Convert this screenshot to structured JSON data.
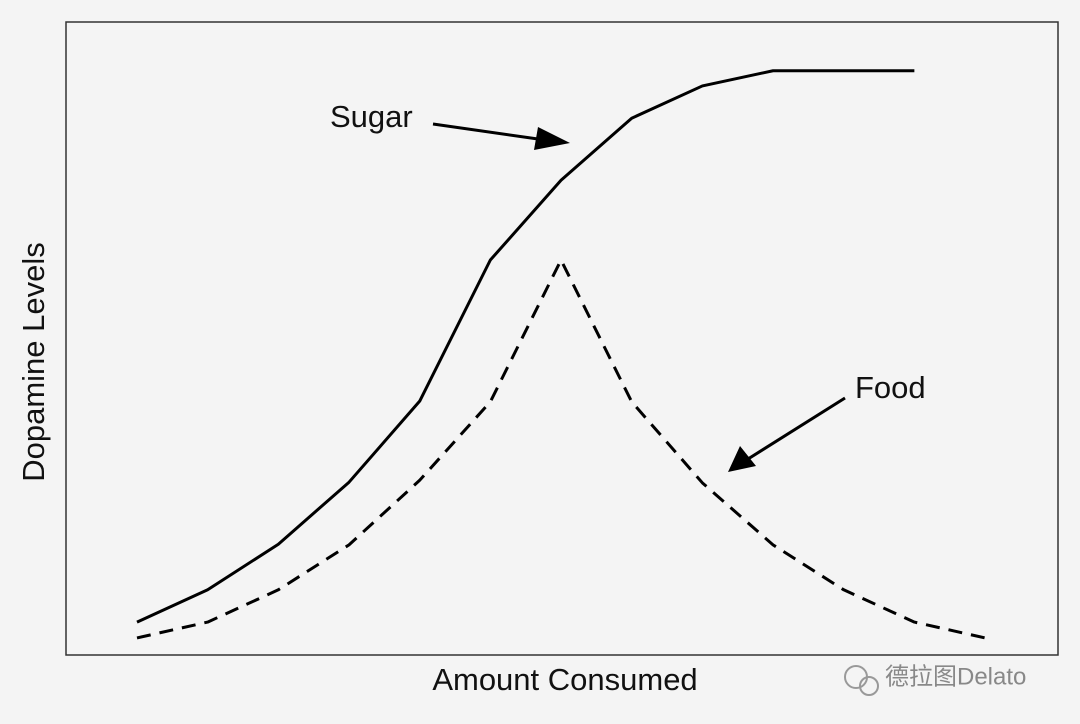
{
  "chart_data": {
    "type": "line",
    "x_label": "Amount Consumed",
    "y_label": "Dopamine Levels",
    "categories": [
      null,
      null,
      null,
      null,
      null,
      null,
      null,
      null,
      null,
      null,
      null,
      null,
      null
    ],
    "series": [
      {
        "name": "Sugar",
        "color": "#000000",
        "dash": false,
        "values": [
          5.2,
          10.3,
          17.5,
          27.3,
          40.1,
          62.4,
          75.0,
          84.8,
          89.9,
          92.3,
          92.3,
          92.3,
          null
        ]
      },
      {
        "name": "Food",
        "color": "#000000",
        "dash": true,
        "values": [
          2.7,
          5.2,
          10.3,
          17.4,
          27.6,
          40.0,
          62.4,
          40.0,
          27.2,
          17.4,
          10.3,
          5.2,
          2.7
        ]
      }
    ],
    "ylim": [
      0,
      100
    ]
  },
  "watermark": "德拉图Delato"
}
